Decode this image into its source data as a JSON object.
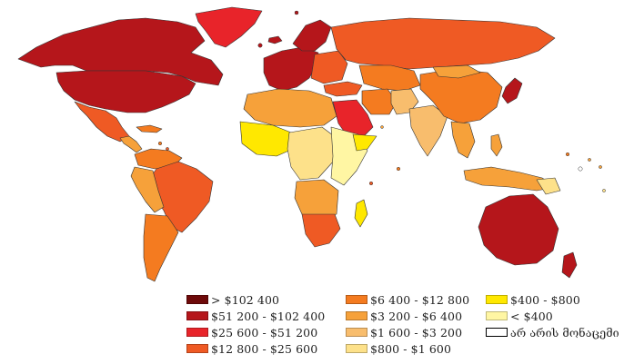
{
  "colors": {
    "c1": "#6e0a0a",
    "c2": "#b5161b",
    "c3": "#e8242a",
    "c4": "#ef5a24",
    "c5": "#f47b20",
    "c6": "#f6a13a",
    "c7": "#f8bd6d",
    "c8": "#fde18a",
    "c9": "#ffe800",
    "c10": "#fff6a3",
    "water": "#ffffff",
    "border": "#333333"
  },
  "legend": [
    {
      "label": "> $102 400",
      "color": "#6e0a0a"
    },
    {
      "label": "$51 200 - $102 400",
      "color": "#b5161b"
    },
    {
      "label": "$25 600 - $51 200",
      "color": "#e8242a"
    },
    {
      "label": "$12 800 - $25 600",
      "color": "#ef5a24"
    },
    {
      "label": "$6 400 - $12 800",
      "color": "#f47b20"
    },
    {
      "label": "$3 200 - $6 400",
      "color": "#f6a13a"
    },
    {
      "label": "$1 600 - $3 200",
      "color": "#f8bd6d"
    },
    {
      "label": "$800 - $1 600",
      "color": "#fde18a"
    },
    {
      "label": "$400 - $800",
      "color": "#ffe800"
    },
    {
      "label": "< $400",
      "color": "#fff6a3"
    },
    {
      "label": "არ არის მონაცემი",
      "color": "nodata"
    }
  ]
}
